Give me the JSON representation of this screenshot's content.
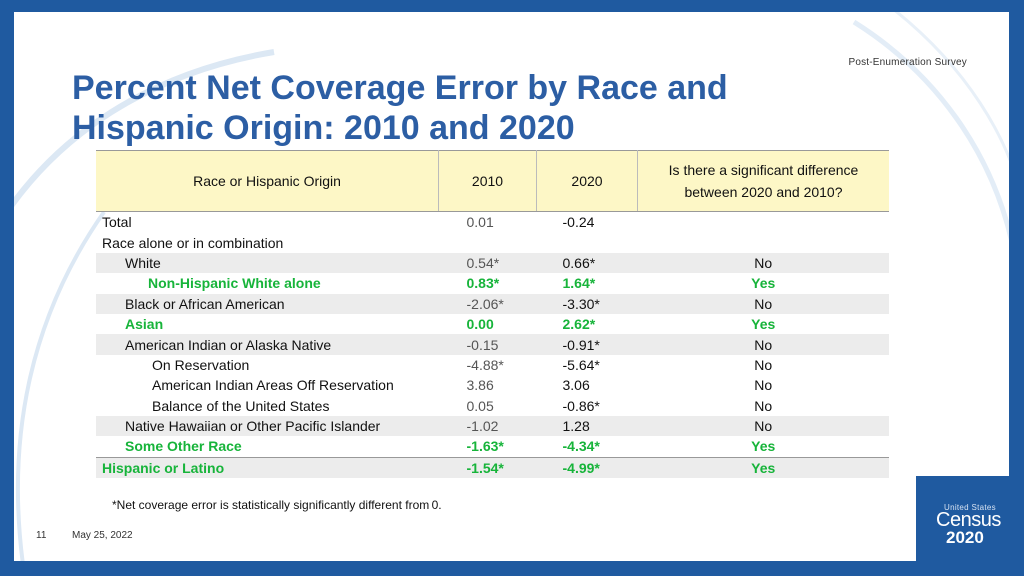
{
  "header": {
    "tag": "Post-Enumeration  Survey"
  },
  "title": {
    "line1": "Percent Net Coverage Error by Race and",
    "line2": "Hispanic Origin: 2010 and 2020"
  },
  "table": {
    "headers": {
      "name": "Race or Hispanic Origin",
      "y2010": "2010",
      "y2020": "2020",
      "sig_line1": "Is there a significant difference",
      "sig_line2": "between 2020 and 2010?"
    },
    "rows": [
      {
        "name": "Total",
        "v2010": "0.01",
        "v2020": "-0.24",
        "sig": ""
      },
      {
        "name": "Race alone or in combination",
        "v2010": "",
        "v2020": "",
        "sig": ""
      },
      {
        "name": "White",
        "v2010": "0.54*",
        "v2020": "0.66*",
        "sig": "No"
      },
      {
        "name": "Non-Hispanic White alone",
        "v2010": "0.83*",
        "v2020": "1.64*",
        "sig": "Yes"
      },
      {
        "name": "Black or African American",
        "v2010": "-2.06*",
        "v2020": "-3.30*",
        "sig": "No"
      },
      {
        "name": "Asian",
        "v2010": "0.00",
        "v2020": "2.62*",
        "sig": "Yes"
      },
      {
        "name": "American Indian or Alaska Native",
        "v2010": "-0.15",
        "v2020": "-0.91*",
        "sig": "No"
      },
      {
        "name": "On Reservation",
        "v2010": "-4.88*",
        "v2020": "-5.64*",
        "sig": "No"
      },
      {
        "name": "American Indian Areas Off Reservation",
        "v2010": "3.86",
        "v2020": "3.06",
        "sig": "No"
      },
      {
        "name": "Balance of the United States",
        "v2010": "0.05",
        "v2020": "-0.86*",
        "sig": "No"
      },
      {
        "name": "Native Hawaiian or Other Pacific Islander",
        "v2010": "-1.02",
        "v2020": "1.28",
        "sig": "No"
      },
      {
        "name": "Some Other Race",
        "v2010": "-1.63*",
        "v2020": "-4.34*",
        "sig": "Yes"
      },
      {
        "name": "Hispanic or Latino",
        "v2010": "-1.54*",
        "v2020": "-4.99*",
        "sig": "Yes"
      }
    ]
  },
  "note": "*Net coverage error is statistically significantly different from 0.",
  "footer": {
    "page": "11",
    "date": "May 25, 2022"
  },
  "logo": {
    "small": "United States",
    "census": "Census",
    "year": "2020"
  },
  "colors": {
    "accent": "#2c5ea4",
    "highlight": "#17b43a",
    "header_bg": "#fdf7c6",
    "frame": "#1f5aa0"
  }
}
